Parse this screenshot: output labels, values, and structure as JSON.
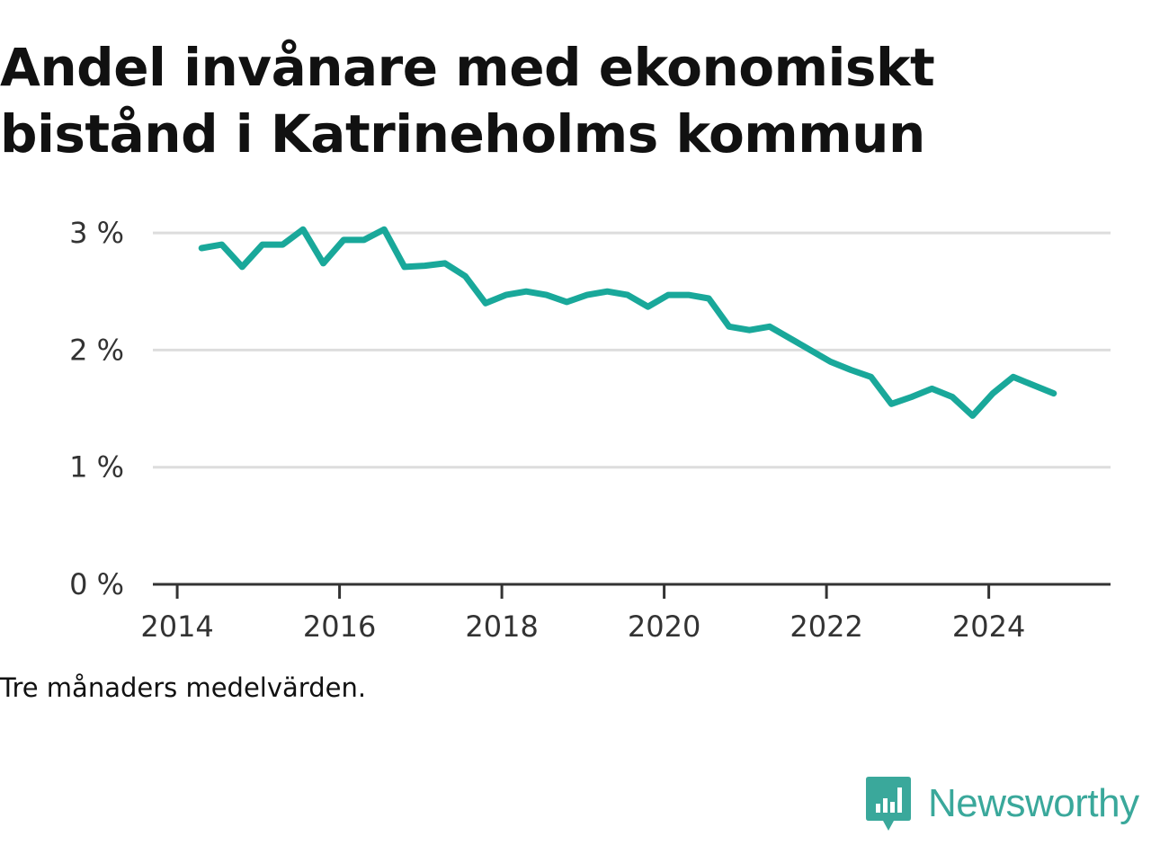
{
  "title": "Andel invånare med ekonomiskt bistånd i Katrineholms kommun",
  "note": "Tre månaders medelvärden.",
  "brand": {
    "name": "Newsworthy"
  },
  "colors": {
    "line": "#19a89a",
    "grid": "#dddddd",
    "axis": "#333333",
    "brand": "#3aa89b"
  },
  "chart_data": {
    "type": "line",
    "title": "Andel invånare med ekonomiskt bistånd i Katrineholms kommun",
    "xlabel": "",
    "ylabel": "",
    "xlim": [
      2013.7,
      2025.5
    ],
    "ylim": [
      0,
      3.2
    ],
    "grid": true,
    "y_ticks": [
      {
        "value": 0,
        "label": "0 %"
      },
      {
        "value": 1,
        "label": "1 %"
      },
      {
        "value": 2,
        "label": "2 %"
      },
      {
        "value": 3,
        "label": "3 %"
      }
    ],
    "x_ticks": [
      {
        "value": 2014,
        "label": "2014"
      },
      {
        "value": 2016,
        "label": "2016"
      },
      {
        "value": 2018,
        "label": "2018"
      },
      {
        "value": 2020,
        "label": "2020"
      },
      {
        "value": 2022,
        "label": "2022"
      },
      {
        "value": 2024,
        "label": "2024"
      }
    ],
    "series": [
      {
        "x": [
          2014.3,
          2014.55,
          2014.8,
          2015.05,
          2015.3,
          2015.55,
          2015.8,
          2016.05,
          2016.3,
          2016.55,
          2016.8,
          2017.05,
          2017.3,
          2017.55,
          2017.8,
          2018.05,
          2018.3,
          2018.55,
          2018.8,
          2019.05,
          2019.3,
          2019.55,
          2019.8,
          2020.05,
          2020.3,
          2020.55,
          2020.8,
          2021.05,
          2021.3,
          2021.55,
          2021.8,
          2022.05,
          2022.3,
          2022.55,
          2022.8,
          2023.05,
          2023.3,
          2023.55,
          2023.8,
          2024.05,
          2024.3,
          2024.55,
          2024.8
        ],
        "values": [
          2.87,
          2.9,
          2.71,
          2.9,
          2.9,
          3.03,
          2.74,
          2.94,
          2.94,
          3.03,
          2.71,
          2.72,
          2.74,
          2.63,
          2.4,
          2.47,
          2.5,
          2.47,
          2.41,
          2.47,
          2.5,
          2.47,
          2.37,
          2.47,
          2.47,
          2.44,
          2.2,
          2.17,
          2.2,
          2.1,
          2.0,
          1.9,
          1.83,
          1.77,
          1.54,
          1.6,
          1.67,
          1.6,
          1.44,
          1.63,
          1.77,
          1.7,
          1.63
        ]
      }
    ]
  }
}
